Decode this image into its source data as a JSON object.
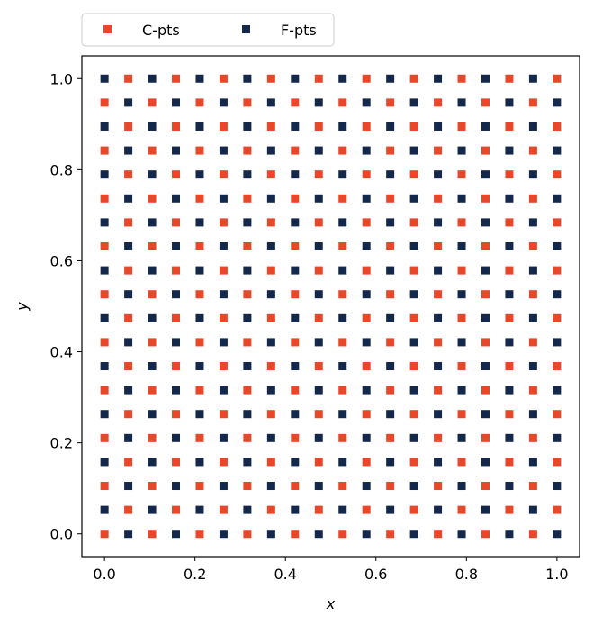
{
  "chart_data": {
    "type": "scatter",
    "title": "",
    "xlabel": "x",
    "ylabel": "y",
    "xlim": [
      -0.05,
      1.05
    ],
    "ylim": [
      -0.05,
      1.05
    ],
    "xticks": [
      0.0,
      0.2,
      0.4,
      0.6,
      0.8,
      1.0
    ],
    "yticks": [
      0.0,
      0.2,
      0.4,
      0.6,
      0.8,
      1.0
    ],
    "xtick_labels": [
      "0.0",
      "0.2",
      "0.4",
      "0.6",
      "0.8",
      "1.0"
    ],
    "ytick_labels": [
      "0.0",
      "0.2",
      "0.4",
      "0.6",
      "0.8",
      "1.0"
    ],
    "grid": false,
    "legend_placement": "above plot, top-left",
    "grid_points_per_axis": 20,
    "pattern": "checkerboard: C-pts where (i + j) is even, F-pts where (i + j) is odd; i, j = 0..19, x = i/19, y = j/19",
    "series": [
      {
        "name": "C-pts",
        "marker": "square",
        "color": "#e8472a"
      },
      {
        "name": "F-pts",
        "marker": "square",
        "color": "#14284b"
      }
    ]
  }
}
